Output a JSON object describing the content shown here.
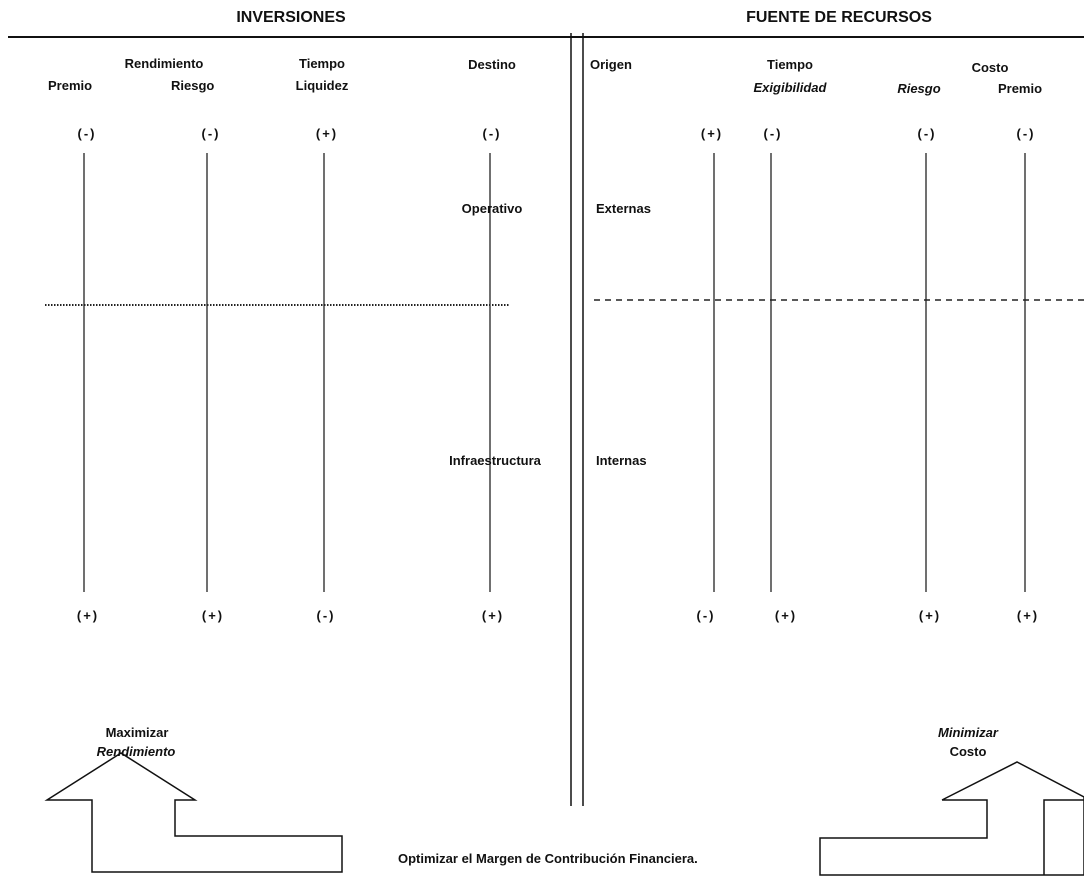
{
  "left_panel": {
    "header": "INVERSIONES",
    "rendimiento": "Rendimiento",
    "premio": "Premio",
    "riesgo": "Riesgo",
    "tiempo": "Tiempo",
    "liquidez": "Liquidez",
    "destino": "Destino",
    "operativo": "Operativo",
    "infraestructura": "Infraestructura",
    "top_marks": [
      "(-)",
      "(-)",
      "(+)",
      "(-)"
    ],
    "bottom_marks": [
      "(+)",
      "(+)",
      "(-)",
      "(+)"
    ],
    "goal_line1": "Maximizar",
    "goal_line2": "Rendimiento"
  },
  "right_panel": {
    "header": "FUENTE DE RECURSOS",
    "origen": "Origen",
    "tiempo": "Tiempo",
    "exigibilidad": "Exigibilidad",
    "costo": "Costo",
    "riesgo": "Riesgo",
    "premio": "Premio",
    "externas": "Externas",
    "internas": "Internas",
    "top_marks": [
      "(+)",
      "(-)",
      "(-)",
      "(-)"
    ],
    "bottom_marks": [
      "(-)",
      "(+)",
      "(+)",
      "(+)"
    ],
    "goal_line1": "Minimizar",
    "goal_line2": "Costo"
  },
  "footer_text": "Optimizar el Margen de Contribución Financiera."
}
